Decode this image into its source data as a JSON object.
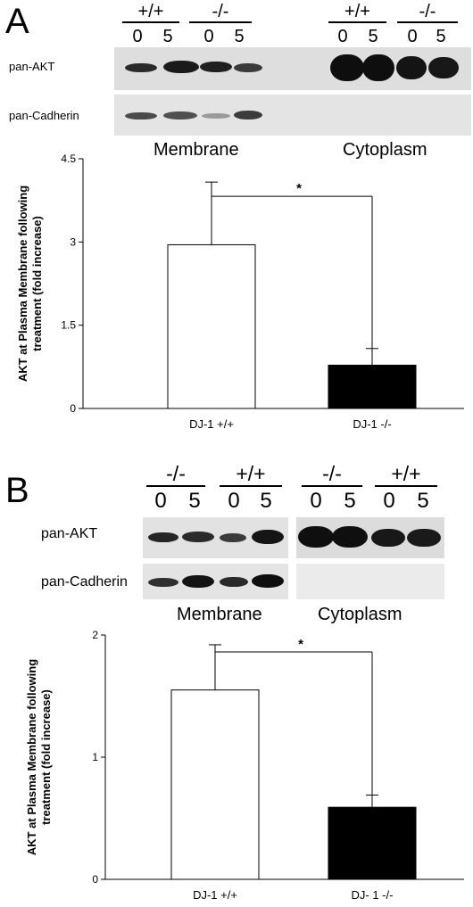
{
  "panels": [
    {
      "letter": "A",
      "blot": {
        "row_labels": [
          "pan-AKT",
          "pan-Cadherin"
        ],
        "genotypes_membrane": [
          "+/+",
          "-/-"
        ],
        "genotypes_cytoplasm": [
          "+/+",
          "-/-"
        ],
        "timepoints": [
          "0",
          "5",
          "0",
          "5"
        ],
        "fractions": [
          "Membrane",
          "Cytoplasm"
        ]
      }
    },
    {
      "letter": "B",
      "blot": {
        "row_labels": [
          "pan-AKT",
          "pan-Cadherin"
        ],
        "genotypes_membrane": [
          "-/-",
          "+/+"
        ],
        "genotypes_cytoplasm": [
          "-/-",
          "+/+"
        ],
        "timepoints": [
          "0",
          "5",
          "0",
          "5"
        ],
        "fractions": [
          "Membrane",
          "Cytoplasm"
        ]
      }
    }
  ],
  "chart_data": [
    {
      "type": "bar",
      "title": "",
      "categories": [
        "DJ-1 +/+",
        "DJ-1 -/-"
      ],
      "values": [
        2.95,
        0.78
      ],
      "error": [
        1.13,
        0.3
      ],
      "colors": [
        "#ffffff",
        "#000000"
      ],
      "ylabel": "AKT at Plasma Membrane following treatment (fold increase)",
      "xlabel": "",
      "ylim": [
        0,
        4.5
      ],
      "yticks": [
        "0",
        "1.5",
        "3",
        "4.5"
      ],
      "significance": "*",
      "grid": false
    },
    {
      "type": "bar",
      "title": "",
      "categories": [
        "DJ-1 +/+",
        "DJ- 1 -/-"
      ],
      "values": [
        1.55,
        0.59
      ],
      "error": [
        0.37,
        0.1
      ],
      "colors": [
        "#ffffff",
        "#000000"
      ],
      "ylabel": "AKT at Plasma Membrane following treatment (fold increase)",
      "xlabel": "",
      "ylim": [
        0,
        2
      ],
      "yticks": [
        "0",
        "1",
        "2"
      ],
      "significance": "*",
      "grid": false
    }
  ]
}
